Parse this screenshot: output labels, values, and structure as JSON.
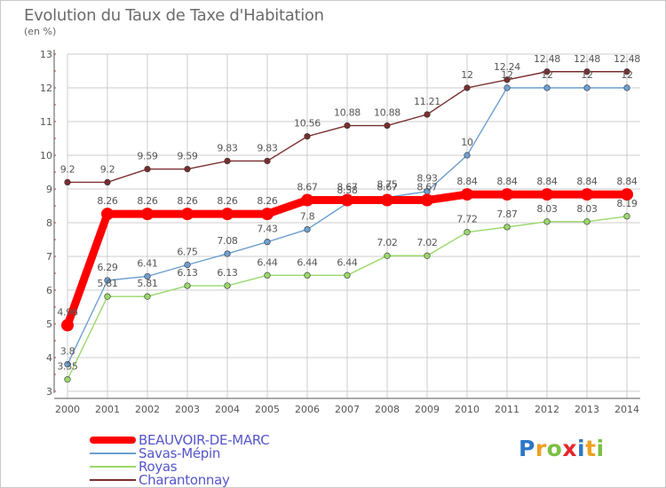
{
  "header": {
    "title": "Evolution du Taux de Taxe d'Habitation",
    "unit": "(en %)"
  },
  "logo": {
    "text": "Proxiti",
    "letters": [
      "P",
      "r",
      "o",
      "x",
      "i",
      "t",
      "i"
    ]
  },
  "colors": {
    "beauvoir": "#ff0000",
    "savas": "#6d9fd0",
    "roybon": "#9ad86a",
    "charantonnay": "#7a2e2e",
    "grid": "#cccccc",
    "axis": "#555555",
    "label": "#555555"
  },
  "chart_data": {
    "type": "line",
    "title": "Evolution du Taux de Taxe d'Habitation",
    "ylabel": "(en %)",
    "xlabel": "",
    "ylim": [
      3,
      13
    ],
    "yticks": [
      3,
      4,
      5,
      6,
      7,
      8,
      9,
      10,
      11,
      12,
      13
    ],
    "categories": [
      "2000",
      "2001",
      "2002",
      "2003",
      "2004",
      "2005",
      "2006",
      "2007",
      "2008",
      "2009",
      "2010",
      "2011",
      "2012",
      "2013",
      "2014"
    ],
    "series": [
      {
        "name": "Charantonnay",
        "key": "charantonnay",
        "values": [
          9.2,
          9.2,
          9.59,
          9.59,
          9.83,
          9.83,
          10.56,
          10.88,
          10.88,
          11.21,
          12,
          12.24,
          12.48,
          12.48,
          12.48
        ],
        "labels": [
          "9.2",
          "9.2",
          "9.59",
          "9.59",
          "9.83",
          "9.83",
          "10.56",
          "10.88",
          "10.88",
          "11.21",
          "12",
          "12.24",
          "12.48",
          "12.48",
          "12.48"
        ]
      },
      {
        "name": "Savas-Mépin",
        "key": "savas",
        "values": [
          3.8,
          6.29,
          6.41,
          6.75,
          7.08,
          7.43,
          7.8,
          8.58,
          8.75,
          8.93,
          10,
          12,
          12,
          12,
          12
        ],
        "labels": [
          "3.8",
          "6.29",
          "6.41",
          "6.75",
          "7.08",
          "7.43",
          "7.8",
          "8.58",
          "8.75",
          "8.93",
          "10",
          "12",
          "12",
          "12",
          "12"
        ]
      },
      {
        "name": "Royas",
        "key": "roybon",
        "values": [
          3.35,
          5.81,
          5.81,
          6.13,
          6.13,
          6.44,
          6.44,
          6.44,
          7.02,
          7.02,
          7.72,
          7.87,
          8.03,
          8.03,
          8.19
        ],
        "labels": [
          "3.35",
          "5.81",
          "5.81",
          "6.13",
          "6.13",
          "6.44",
          "6.44",
          "6.44",
          "7.02",
          "7.02",
          "7.72",
          "7.87",
          "8.03",
          "8.03",
          "8.19"
        ]
      },
      {
        "name": "BEAUVOIR-DE-MARC",
        "key": "beauvoir",
        "values": [
          4.96,
          8.26,
          8.26,
          8.26,
          8.26,
          8.26,
          8.67,
          8.67,
          8.67,
          8.67,
          8.84,
          8.84,
          8.84,
          8.84,
          8.84
        ],
        "labels": [
          "4.96",
          "8.26",
          "8.26",
          "8.26",
          "8.26",
          "8.26",
          "8.67",
          "8.67",
          "8.67",
          "8.67",
          "8.84",
          "8.84",
          "8.84",
          "8.84",
          "8.84"
        ]
      }
    ],
    "legend": [
      {
        "name": "BEAUVOIR-DE-MARC",
        "key": "beauvoir"
      },
      {
        "name": "Savas-Mépin",
        "key": "savas"
      },
      {
        "name": "Royas",
        "key": "roybon"
      },
      {
        "name": "Charantonnay",
        "key": "charantonnay"
      }
    ]
  }
}
